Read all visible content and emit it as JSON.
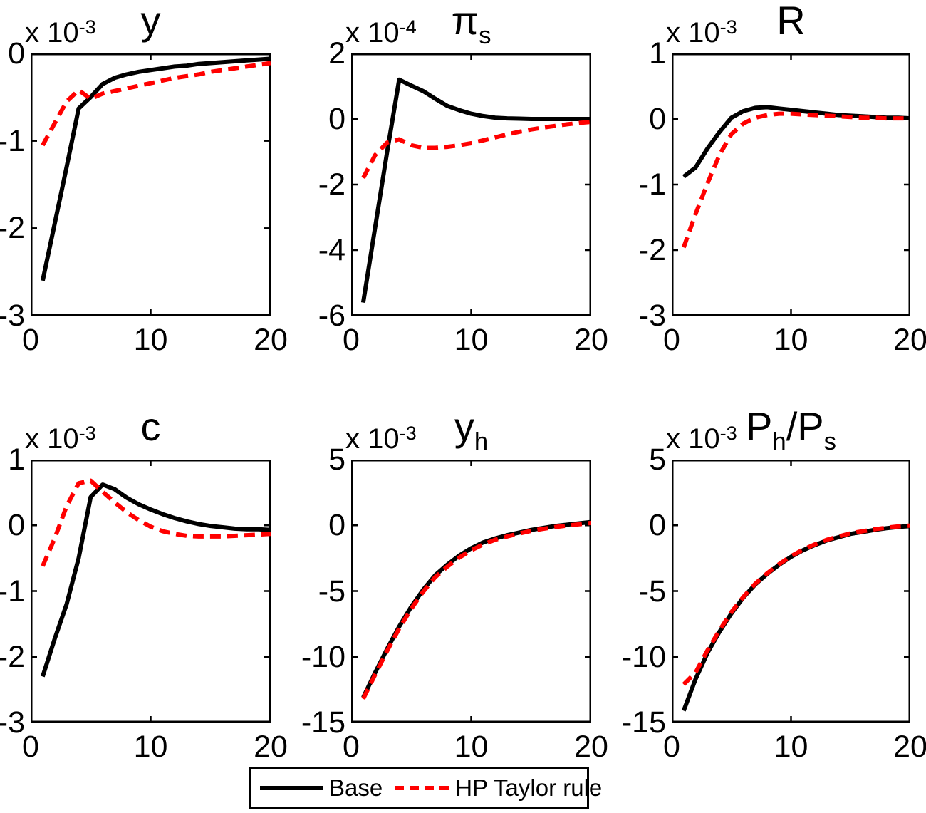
{
  "figure": {
    "background": "#ffffff",
    "axis_color": "#000000",
    "text_color": "#000000"
  },
  "legend": {
    "position": "bottom-center",
    "items": [
      {
        "label": "Base",
        "color": "#000000",
        "line_style": "solid"
      },
      {
        "label": "HP Taylor rule",
        "color": "#ff0000",
        "line_style": "dashed"
      }
    ]
  },
  "chart_data": [
    {
      "type": "line",
      "title": "y",
      "title_segments": [
        {
          "t": "y",
          "sub": false
        }
      ],
      "scale": {
        "prefix": "x 10",
        "exp": "-3"
      },
      "xlim": [
        0,
        20
      ],
      "ylim": [
        -3,
        0
      ],
      "xticks": [
        0,
        10,
        20
      ],
      "yticks": [
        0,
        -1,
        -2,
        -3
      ],
      "grid": false,
      "x": [
        1,
        2,
        3,
        4,
        5,
        6,
        7,
        8,
        9,
        10,
        11,
        12,
        13,
        14,
        15,
        16,
        17,
        18,
        19,
        20
      ],
      "series": [
        {
          "name": "Base",
          "values": [
            -2.6,
            -1.95,
            -1.3,
            -0.63,
            -0.5,
            -0.35,
            -0.28,
            -0.24,
            -0.21,
            -0.19,
            -0.17,
            -0.15,
            -0.14,
            -0.12,
            -0.11,
            -0.1,
            -0.09,
            -0.08,
            -0.07,
            -0.06
          ]
        },
        {
          "name": "HP Taylor rule",
          "values": [
            -1.05,
            -0.8,
            -0.55,
            -0.42,
            -0.52,
            -0.46,
            -0.43,
            -0.4,
            -0.37,
            -0.34,
            -0.31,
            -0.28,
            -0.26,
            -0.24,
            -0.21,
            -0.19,
            -0.17,
            -0.15,
            -0.13,
            -0.11
          ]
        }
      ]
    },
    {
      "type": "line",
      "title": "pi_s",
      "title_segments": [
        {
          "t": "π",
          "sub": false
        },
        {
          "t": "s",
          "sub": true
        }
      ],
      "scale": {
        "prefix": "x 10",
        "exp": "-4"
      },
      "xlim": [
        0,
        20
      ],
      "ylim": [
        -6,
        2
      ],
      "xticks": [
        0,
        10,
        20
      ],
      "yticks": [
        2,
        0,
        -2,
        -4,
        -6
      ],
      "grid": false,
      "x": [
        1,
        2,
        3,
        4,
        5,
        6,
        7,
        8,
        9,
        10,
        11,
        12,
        13,
        14,
        15,
        16,
        17,
        18,
        19,
        20
      ],
      "series": [
        {
          "name": "Base",
          "values": [
            -5.6,
            -3.3,
            -1.0,
            1.2,
            1.02,
            0.85,
            0.62,
            0.4,
            0.27,
            0.16,
            0.09,
            0.04,
            0.02,
            0.01,
            0,
            0,
            0,
            0,
            0,
            0
          ]
        },
        {
          "name": "HP Taylor rule",
          "values": [
            -1.8,
            -1.1,
            -0.72,
            -0.62,
            -0.8,
            -0.88,
            -0.88,
            -0.85,
            -0.8,
            -0.74,
            -0.65,
            -0.56,
            -0.47,
            -0.39,
            -0.32,
            -0.26,
            -0.21,
            -0.16,
            -0.12,
            -0.09
          ]
        }
      ]
    },
    {
      "type": "line",
      "title": "R",
      "title_segments": [
        {
          "t": "R",
          "sub": false
        }
      ],
      "scale": {
        "prefix": "x 10",
        "exp": "-3"
      },
      "xlim": [
        0,
        20
      ],
      "ylim": [
        -3,
        1
      ],
      "xticks": [
        0,
        10,
        20
      ],
      "yticks": [
        1,
        0,
        -1,
        -2,
        -3
      ],
      "grid": false,
      "x": [
        1,
        2,
        3,
        4,
        5,
        6,
        7,
        8,
        9,
        10,
        11,
        12,
        13,
        14,
        15,
        16,
        17,
        18,
        19,
        20
      ],
      "series": [
        {
          "name": "Base",
          "values": [
            -0.88,
            -0.74,
            -0.45,
            -0.2,
            0.02,
            0.12,
            0.17,
            0.18,
            0.16,
            0.14,
            0.12,
            0.1,
            0.08,
            0.06,
            0.05,
            0.04,
            0.03,
            0.02,
            0.02,
            0.01
          ]
        },
        {
          "name": "HP Taylor rule",
          "values": [
            -1.96,
            -1.45,
            -0.98,
            -0.55,
            -0.23,
            -0.07,
            0.02,
            0.06,
            0.08,
            0.08,
            0.07,
            0.06,
            0.05,
            0.04,
            0.03,
            0.02,
            0.02,
            0.01,
            0.01,
            0.01
          ]
        }
      ]
    },
    {
      "type": "line",
      "title": "c",
      "title_segments": [
        {
          "t": "c",
          "sub": false
        }
      ],
      "scale": {
        "prefix": "x 10",
        "exp": "-3"
      },
      "xlim": [
        0,
        20
      ],
      "ylim": [
        -3,
        1
      ],
      "xticks": [
        0,
        10,
        20
      ],
      "yticks": [
        1,
        0,
        -1,
        -2,
        -3
      ],
      "grid": false,
      "x": [
        1,
        2,
        3,
        4,
        5,
        6,
        7,
        8,
        9,
        10,
        11,
        12,
        13,
        14,
        15,
        16,
        17,
        18,
        19,
        20
      ],
      "series": [
        {
          "name": "Base",
          "values": [
            -2.3,
            -1.73,
            -1.2,
            -0.5,
            0.43,
            0.62,
            0.55,
            0.42,
            0.32,
            0.24,
            0.17,
            0.11,
            0.06,
            0.02,
            -0.01,
            -0.03,
            -0.05,
            -0.06,
            -0.06,
            -0.07
          ]
        },
        {
          "name": "HP Taylor rule",
          "values": [
            -0.62,
            -0.2,
            0.29,
            0.64,
            0.68,
            0.51,
            0.35,
            0.2,
            0.08,
            -0.02,
            -0.09,
            -0.13,
            -0.16,
            -0.17,
            -0.17,
            -0.17,
            -0.16,
            -0.15,
            -0.14,
            -0.13
          ]
        }
      ]
    },
    {
      "type": "line",
      "title": "y_h",
      "title_segments": [
        {
          "t": "y",
          "sub": false
        },
        {
          "t": "h",
          "sub": true
        }
      ],
      "scale": {
        "prefix": "x 10",
        "exp": "-3"
      },
      "xlim": [
        0,
        20
      ],
      "ylim": [
        -15,
        5
      ],
      "xticks": [
        0,
        10,
        20
      ],
      "yticks": [
        5,
        0,
        -5,
        -10,
        -15
      ],
      "grid": false,
      "x": [
        1,
        2,
        3,
        4,
        5,
        6,
        7,
        8,
        9,
        10,
        11,
        12,
        13,
        14,
        15,
        16,
        17,
        18,
        19,
        20
      ],
      "series": [
        {
          "name": "Base",
          "values": [
            -13.1,
            -11.2,
            -9.4,
            -7.7,
            -6.2,
            -4.9,
            -3.8,
            -3.0,
            -2.3,
            -1.75,
            -1.3,
            -1.0,
            -0.75,
            -0.55,
            -0.35,
            -0.2,
            -0.05,
            0.05,
            0.15,
            0.25
          ]
        },
        {
          "name": "HP Taylor rule",
          "values": [
            -13.2,
            -11.35,
            -9.55,
            -7.85,
            -6.35,
            -5.05,
            -3.95,
            -3.15,
            -2.45,
            -1.9,
            -1.45,
            -1.1,
            -0.85,
            -0.62,
            -0.42,
            -0.27,
            -0.13,
            -0.02,
            0.08,
            0.18
          ]
        }
      ]
    },
    {
      "type": "line",
      "title": "P_h/P_s",
      "title_segments": [
        {
          "t": "P",
          "sub": false
        },
        {
          "t": "h",
          "sub": true
        },
        {
          "t": "/P",
          "sub": false
        },
        {
          "t": "s",
          "sub": true
        }
      ],
      "scale": {
        "prefix": "x 10",
        "exp": "-3"
      },
      "xlim": [
        0,
        20
      ],
      "ylim": [
        -15,
        5
      ],
      "xticks": [
        0,
        10,
        20
      ],
      "yticks": [
        5,
        0,
        -5,
        -10,
        -15
      ],
      "grid": false,
      "x": [
        1,
        2,
        3,
        4,
        5,
        6,
        7,
        8,
        9,
        10,
        11,
        12,
        13,
        14,
        15,
        16,
        17,
        18,
        19,
        20
      ],
      "series": [
        {
          "name": "Base",
          "values": [
            -14.1,
            -11.7,
            -9.7,
            -8.1,
            -6.7,
            -5.5,
            -4.5,
            -3.7,
            -3.0,
            -2.4,
            -1.9,
            -1.5,
            -1.15,
            -0.9,
            -0.65,
            -0.5,
            -0.35,
            -0.22,
            -0.12,
            -0.05
          ]
        },
        {
          "name": "HP Taylor rule",
          "values": [
            -12.1,
            -11.2,
            -9.5,
            -8.0,
            -6.6,
            -5.45,
            -4.45,
            -3.65,
            -2.95,
            -2.35,
            -1.85,
            -1.45,
            -1.1,
            -0.85,
            -0.6,
            -0.45,
            -0.3,
            -0.18,
            -0.08,
            -0.02
          ]
        }
      ]
    }
  ]
}
